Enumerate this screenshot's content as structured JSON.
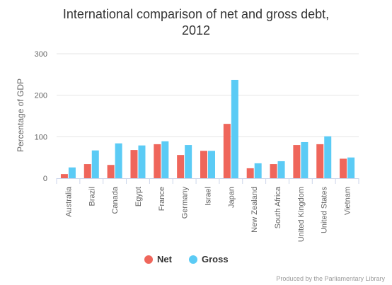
{
  "chart_data": {
    "type": "bar",
    "title_lines": [
      "International comparison of net and gross debt,",
      "2012"
    ],
    "ylabel": "Percentage of GDP",
    "ylim": [
      0,
      300
    ],
    "yticks": [
      0,
      100,
      200,
      300
    ],
    "grid": true,
    "legend_position": "bottom-center",
    "categories": [
      "Australia",
      "Brazil",
      "Canada",
      "Egypt",
      "France",
      "Germany",
      "Israel",
      "Japan",
      "New Zealand",
      "South Africa",
      "United Kingdom",
      "United States",
      "Vietnam"
    ],
    "series": [
      {
        "name": "Net",
        "color": "#ef665b",
        "values": [
          10,
          34,
          32,
          68,
          82,
          56,
          66,
          131,
          24,
          34,
          80,
          82,
          47
        ]
      },
      {
        "name": "Gross",
        "color": "#5bcbf5",
        "values": [
          26,
          67,
          84,
          79,
          89,
          80,
          66,
          237,
          36,
          41,
          87,
          101,
          50
        ]
      }
    ]
  },
  "credits": "Produced by the Parliamentary Library"
}
